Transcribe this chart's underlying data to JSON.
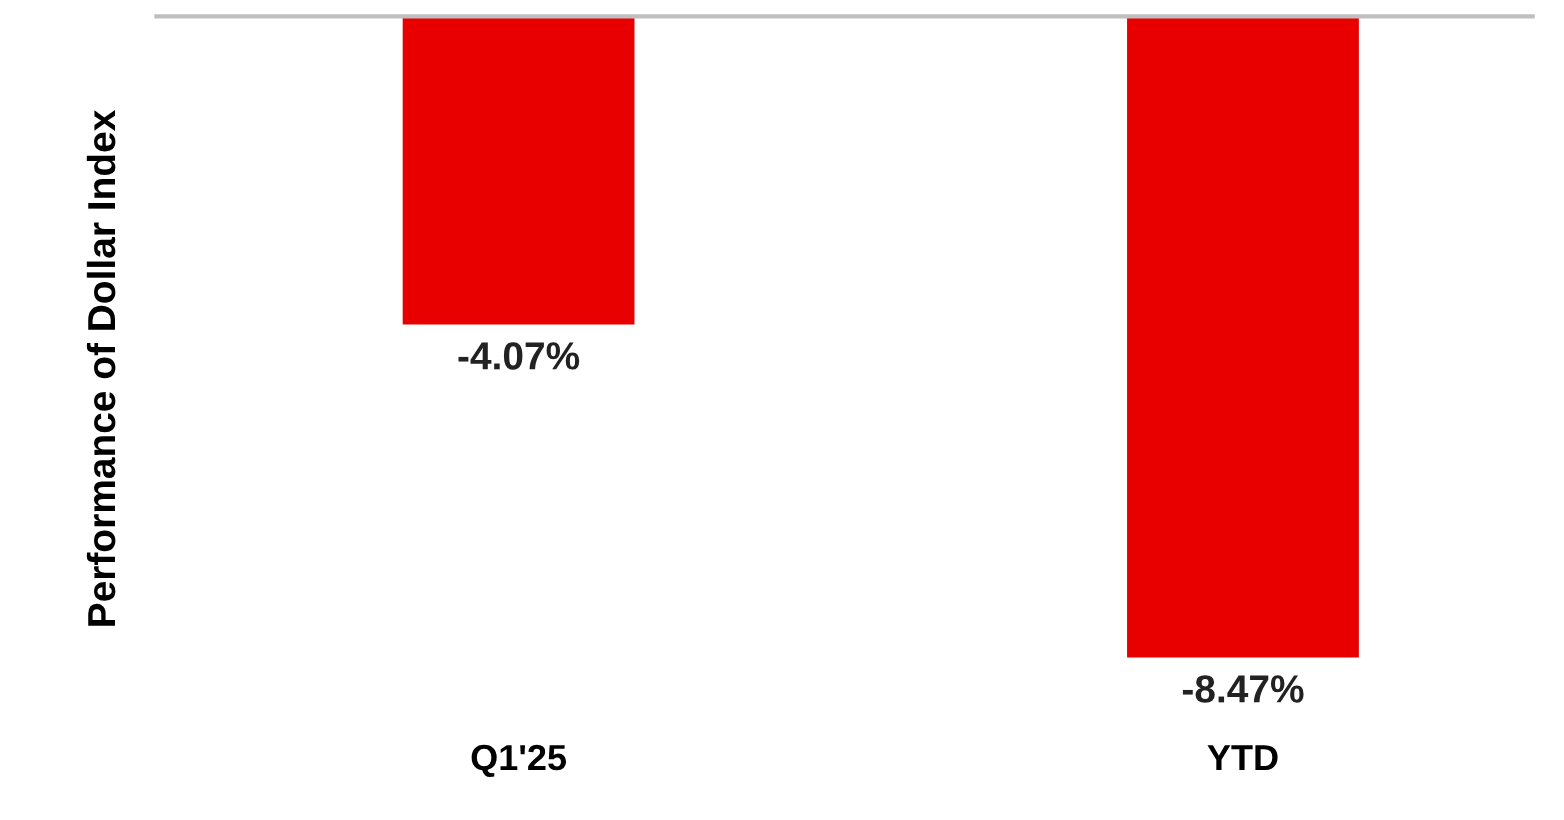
{
  "chart_data": {
    "type": "bar",
    "ylabel": "Performance of Dollar Index",
    "categories": [
      "Q1'25",
      "YTD"
    ],
    "values": [
      -4.07,
      -8.47
    ],
    "color": "#e80000",
    "value_labels": [
      "-4.07%",
      "-8.47%"
    ],
    "grid": false,
    "legend": false
  }
}
